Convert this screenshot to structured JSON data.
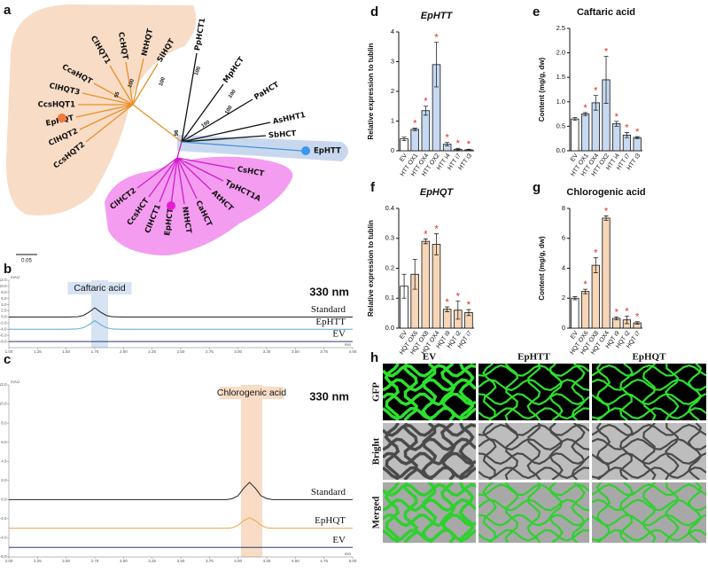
{
  "panel_labels": [
    "a",
    "b",
    "c",
    "d",
    "e",
    "f",
    "g",
    "h"
  ],
  "tree": {
    "labels": [
      "PpHCT1",
      "MpHCT",
      "PaHCT",
      "AsHHT1",
      "SbHCT",
      "EpHTT",
      "CsHCT",
      "TpHCT1A",
      "AtHCT",
      "CaHCT",
      "NtHCT",
      "EpHCT",
      "ClHCT1",
      "CcsHCT",
      "ClHCT2",
      "SlHQT",
      "NtHQT",
      "CcHQT",
      "ClHQT1",
      "CcaHQT",
      "ClHQT3",
      "CcsHQT1",
      "EpHQT",
      "ClHQT2",
      "CcsHQT2"
    ],
    "bootstrap": [
      "100",
      "100",
      "100",
      "100",
      "100",
      "100",
      "55",
      "96"
    ],
    "scale": "0.05"
  },
  "chart_data": [
    {
      "type": "line",
      "title": "Caftaric acid",
      "subtitle": "330 nm",
      "y_label": "mAU",
      "x_label": "min",
      "x": [
        1,
        1.25,
        1.5,
        1.6,
        1.65,
        1.7,
        1.75,
        1.8,
        1.85,
        1.9,
        2,
        2.5,
        3,
        3.5,
        4
      ],
      "xlim": [
        1,
        4
      ],
      "xticks": [
        {
          "value": 1,
          "label": "1.00"
        },
        1.25,
        {
          "value": 1.5,
          "label": "1.50"
        },
        1.75,
        {
          "value": 2,
          "label": "2.00"
        },
        2.25,
        {
          "value": 2.5,
          "label": "2.50"
        },
        2.75,
        {
          "value": 3,
          "label": "3.00"
        },
        3.25,
        {
          "value": 3.5,
          "label": "3.50"
        },
        3.75,
        {
          "value": 4,
          "label": "4.00"
        }
      ],
      "ylim": [
        -10,
        12
      ],
      "yticks": [
        {
          "value": 12,
          "label": "12.0"
        },
        {
          "value": 10,
          "label": "10.0"
        },
        {
          "value": 8,
          "label": "8.0"
        },
        {
          "value": 6,
          "label": "6.0"
        },
        {
          "value": 4,
          "label": "4.0"
        },
        {
          "value": 2,
          "label": "2.0"
        },
        {
          "value": 0,
          "label": "0.0"
        },
        {
          "value": -2,
          "label": "-2.0"
        },
        {
          "value": -4,
          "label": "-4.0"
        },
        {
          "value": -6,
          "label": "-6.0"
        },
        {
          "value": -8,
          "label": "-8.0"
        }
      ],
      "series": [
        {
          "name": "Standard",
          "color": "#222222",
          "values": [
            0,
            0,
            0,
            0.1,
            0.5,
            1.6,
            3,
            1.6,
            0.5,
            0.1,
            0,
            0,
            0,
            0,
            0
          ]
        },
        {
          "name": "EpHTT",
          "color": "#5aa9d6",
          "values": [
            -4,
            -4,
            -4,
            -3.9,
            -3.5,
            -2.5,
            -1.2,
            -2.5,
            -3.5,
            -3.9,
            -4,
            -4,
            -4,
            -4,
            -4
          ]
        },
        {
          "name": "EV",
          "color": "#2d3a6a",
          "values": [
            -8,
            -8,
            -8,
            -8,
            -8,
            -8,
            -8,
            -8,
            -8,
            -8,
            -8,
            -8,
            -8,
            -8,
            -8
          ]
        }
      ]
    },
    {
      "type": "line",
      "title": "Chlorogenic acid",
      "subtitle": "330 nm",
      "y_label": "mAU",
      "x_label": "min",
      "x": [
        2,
        2.5,
        3,
        3.5,
        3.9,
        3.95,
        4,
        4.05,
        4.1,
        4.15,
        4.2,
        4.25,
        4.3,
        4.5,
        5
      ],
      "xlim": [
        2,
        5
      ],
      "xticks": [
        {
          "value": 2,
          "label": "2.00"
        },
        2.25,
        {
          "value": 2.5,
          "label": "2.50"
        },
        2.75,
        {
          "value": 3,
          "label": "3.00"
        },
        3.25,
        {
          "value": 3.5,
          "label": "3.50"
        },
        3.75,
        {
          "value": 4,
          "label": "4.00"
        },
        4.25,
        {
          "value": 4.5,
          "label": "4.50"
        },
        4.75,
        {
          "value": 5,
          "label": "5.00"
        }
      ],
      "ylim": [
        -6,
        12
      ],
      "yticks": [
        {
          "value": 12,
          "label": "12.0"
        },
        {
          "value": 10,
          "label": "10.0"
        },
        {
          "value": 8,
          "label": "8.0"
        },
        {
          "value": 6,
          "label": "6.0"
        },
        {
          "value": 4,
          "label": "4.0"
        },
        {
          "value": 2,
          "label": "2.0"
        },
        {
          "value": 0,
          "label": "0.0"
        },
        {
          "value": -2,
          "label": "-2.0"
        },
        {
          "value": -4,
          "label": "-4.0"
        },
        {
          "value": -6,
          "label": "-6.0"
        }
      ],
      "series": [
        {
          "name": "Standard",
          "color": "#222222",
          "values": [
            0,
            0,
            0,
            0,
            0,
            0.1,
            0.4,
            1.2,
            1.8,
            1.2,
            0.4,
            0.1,
            0,
            0,
            0
          ]
        },
        {
          "name": "EpHQT",
          "color": "#f0a24e",
          "values": [
            -3,
            -3,
            -3,
            -3,
            -3,
            -2.95,
            -2.7,
            -2.2,
            -1.9,
            -2.2,
            -2.7,
            -2.95,
            -3,
            -3,
            -3
          ]
        },
        {
          "name": "EV",
          "color": "#2d3a6a",
          "values": [
            -5,
            -5,
            -5,
            -5,
            -5,
            -5,
            -5,
            -5,
            -5,
            -5,
            -5,
            -5,
            -5,
            -5,
            -5
          ]
        }
      ]
    },
    {
      "type": "bar",
      "title": "EpHTT",
      "title_italic": true,
      "y_label": "Relative expression to tublin",
      "categories": [
        "EV",
        "HTT OX1",
        "HTT OX4",
        "HTT OX2",
        "HTT i4",
        "HTT i7",
        "HTT i3"
      ],
      "values": [
        0.4,
        0.72,
        1.35,
        2.9,
        0.22,
        0.05,
        0.03
      ],
      "errors": [
        0.06,
        0.04,
        0.15,
        0.75,
        0.06,
        0.03,
        0.02
      ],
      "colors": [
        "#ffffff",
        "#c6d9f1",
        "#c6d9f1",
        "#c6d9f1",
        "#c6d9f1",
        "#c6d9f1",
        "#c6d9f1"
      ],
      "significant": [
        false,
        true,
        true,
        true,
        true,
        true,
        true
      ],
      "significance_label": "*",
      "ylim": [
        0,
        4
      ],
      "yticks": [
        0,
        1,
        2,
        3,
        4
      ]
    },
    {
      "type": "bar",
      "title": "Caftaric acid",
      "title_italic": false,
      "y_label": "Content (mg/g, dw)",
      "categories": [
        "EV",
        "HTT OX1",
        "HTT OX4",
        "HTT OX2",
        "HTT i4",
        "HTT i7",
        "HTT i3"
      ],
      "values": [
        0.65,
        0.75,
        0.98,
        1.45,
        0.55,
        0.32,
        0.27
      ],
      "errors": [
        0.03,
        0.03,
        0.15,
        0.48,
        0.05,
        0.05,
        0.02
      ],
      "colors": [
        "#ffffff",
        "#c6d9f1",
        "#c6d9f1",
        "#c6d9f1",
        "#c6d9f1",
        "#c6d9f1",
        "#c6d9f1"
      ],
      "significant": [
        false,
        true,
        true,
        true,
        true,
        true,
        true
      ],
      "significance_label": "*",
      "ylim": [
        0,
        2.5
      ],
      "yticks": [
        {
          "value": 0,
          "label": "0.0"
        },
        0.5,
        {
          "value": 1,
          "label": "1.0"
        },
        1.5,
        {
          "value": 2,
          "label": "2.0"
        },
        2.5
      ]
    },
    {
      "type": "bar",
      "title": "EpHQT",
      "title_italic": true,
      "y_label": "Relative expression to tublin",
      "categories": [
        "EV",
        "HQT OX6",
        "HQT OX8",
        "HQT OX4",
        "HQT i9",
        "HQT i2",
        "HQT i7"
      ],
      "values": [
        0.14,
        0.18,
        0.29,
        0.28,
        0.063,
        0.06,
        0.052
      ],
      "errors": [
        0.04,
        0.05,
        0.008,
        0.035,
        0.008,
        0.03,
        0.01
      ],
      "colors": [
        "#ffffff",
        "#f6d6b6",
        "#f6d6b6",
        "#f6d6b6",
        "#f6d6b6",
        "#f6d6b6",
        "#f6d6b6"
      ],
      "significant": [
        false,
        false,
        true,
        true,
        true,
        true,
        true
      ],
      "significance_label": "*",
      "ylim": [
        0,
        0.4
      ],
      "yticks": [
        {
          "value": 0,
          "label": "0.0"
        },
        0.1,
        0.2,
        0.3,
        0.4
      ]
    },
    {
      "type": "bar",
      "title": "Chlorogenic acid",
      "title_italic": false,
      "y_label": "Content (mg/g, dw)",
      "categories": [
        "EV",
        "HQT OX6",
        "HQT OX8",
        "HQT OX4",
        "HQT i9",
        "HQT i2",
        "HQT i7"
      ],
      "values": [
        2.0,
        2.45,
        4.2,
        7.35,
        0.65,
        0.55,
        0.35
      ],
      "errors": [
        0.1,
        0.15,
        0.5,
        0.15,
        0.1,
        0.25,
        0.08
      ],
      "colors": [
        "#ffffff",
        "#f6d6b6",
        "#f6d6b6",
        "#f6d6b6",
        "#f6d6b6",
        "#f6d6b6",
        "#f6d6b6"
      ],
      "significant": [
        false,
        true,
        true,
        true,
        true,
        true,
        true
      ],
      "significance_label": "*",
      "ylim": [
        0,
        8
      ],
      "yticks": [
        0,
        2,
        4,
        6,
        8
      ]
    }
  ],
  "microscopy": {
    "columns": [
      "EV",
      "EpHTT",
      "EpHQT"
    ],
    "rows": [
      "GFP",
      "Bright",
      "Merged"
    ]
  }
}
